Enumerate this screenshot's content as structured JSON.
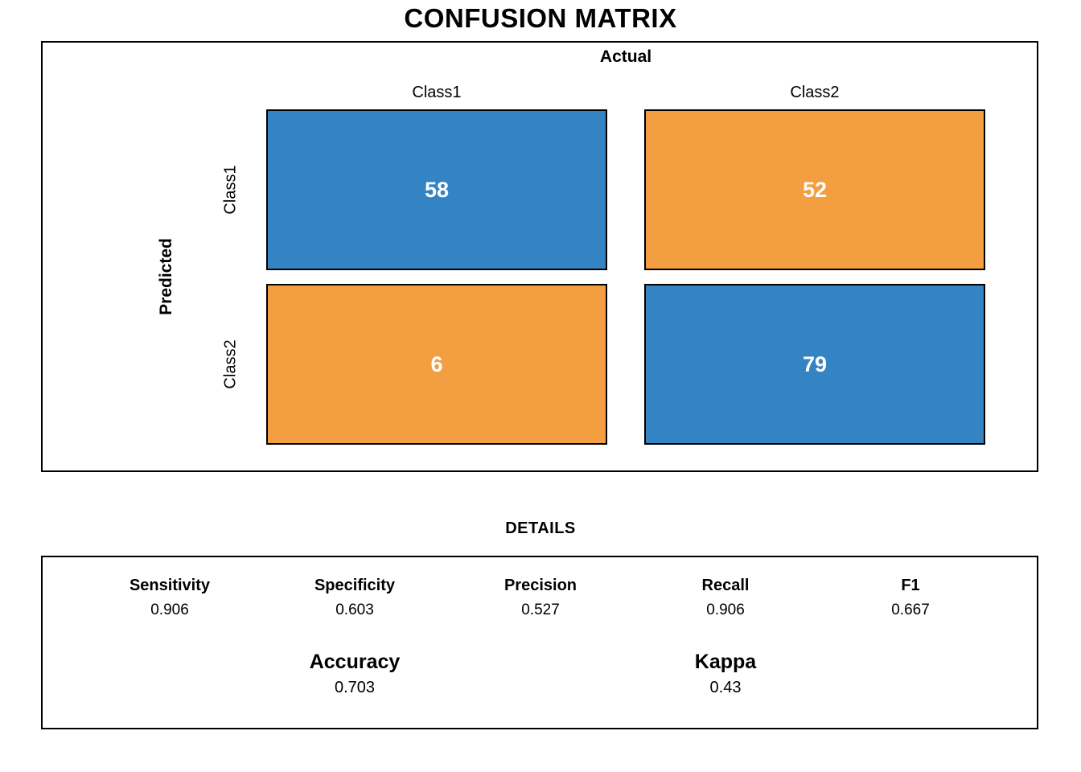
{
  "title": "CONFUSION MATRIX",
  "matrix": {
    "x_axis_label": "Actual",
    "y_axis_label": "Predicted",
    "col_labels": [
      "Class1",
      "Class2"
    ],
    "row_labels": [
      "Class1",
      "Class2"
    ],
    "cells": [
      {
        "row": "Class1",
        "col": "Class1",
        "value": "58",
        "color": "#3484C4"
      },
      {
        "row": "Class1",
        "col": "Class2",
        "value": "52",
        "color": "#F29E41"
      },
      {
        "row": "Class2",
        "col": "Class1",
        "value": "6",
        "color": "#F29E41"
      },
      {
        "row": "Class2",
        "col": "Class2",
        "value": "79",
        "color": "#3484C4"
      }
    ]
  },
  "details": {
    "title": "DETAILS",
    "metrics": [
      {
        "label": "Sensitivity",
        "value": "0.906"
      },
      {
        "label": "Specificity",
        "value": "0.603"
      },
      {
        "label": "Precision",
        "value": "0.527"
      },
      {
        "label": "Recall",
        "value": "0.906"
      },
      {
        "label": "F1",
        "value": "0.667"
      }
    ],
    "summary": [
      {
        "label": "Accuracy",
        "value": "0.703"
      },
      {
        "label": "Kappa",
        "value": "0.43"
      }
    ]
  },
  "colors": {
    "match_cell": "#3484C4",
    "mismatch_cell": "#F29E41",
    "cell_text": "#FFFFFF",
    "border": "#000000",
    "background": "#FFFFFF"
  },
  "chart_data": {
    "type": "heatmap",
    "title": "CONFUSION MATRIX",
    "xlabel": "Actual",
    "ylabel": "Predicted",
    "x_categories": [
      "Class1",
      "Class2"
    ],
    "y_categories": [
      "Class1",
      "Class2"
    ],
    "values": [
      [
        58,
        52
      ],
      [
        6,
        79
      ]
    ],
    "cell_colors": [
      [
        "#3484C4",
        "#F29E41"
      ],
      [
        "#F29E41",
        "#3484C4"
      ]
    ],
    "grid": false,
    "legend": false,
    "stats": {
      "Sensitivity": 0.906,
      "Specificity": 0.603,
      "Precision": 0.527,
      "Recall": 0.906,
      "F1": 0.667,
      "Accuracy": 0.703,
      "Kappa": 0.43
    }
  }
}
